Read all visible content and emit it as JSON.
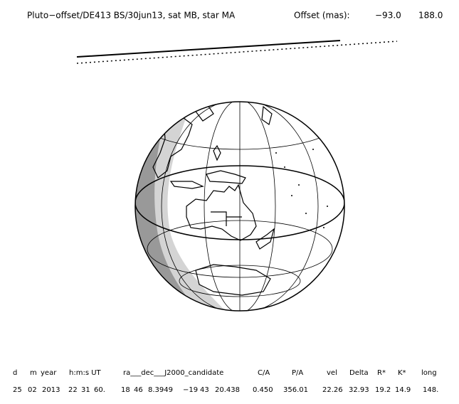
{
  "header": {
    "title": "Pluto−offset/DE413 BS/30jun13, sat MB, star MA",
    "offset_label": "Offset (mas):",
    "offset_values": [
      "−93.0",
      "188.0"
    ]
  },
  "table": {
    "columns": [
      "d",
      "m",
      "year",
      "h:m:s UT",
      "ra___dec___J2000_candidate",
      "C/A",
      "P/A",
      "vel",
      "Delta",
      "R*",
      "K*",
      "long"
    ],
    "row": [
      "25",
      "02",
      "2013",
      "22",
      "31",
      "60.",
      "18",
      "46",
      "8.3949",
      "−19",
      "43",
      "20.438",
      "0.450",
      "356.01",
      "22.26",
      "32.93",
      "19.2",
      "14.9",
      "148."
    ]
  }
}
